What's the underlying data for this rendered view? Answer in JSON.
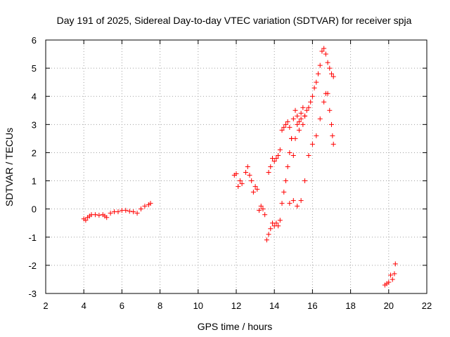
{
  "chart_data": {
    "type": "scatter",
    "title": "Day 191 of 2025, Sidereal Day-to-day VTEC variation (SDTVAR) for receiver spja",
    "xlabel": "GPS time / hours",
    "ylabel": "SDTVAR / TECUs",
    "xlim": [
      2,
      22
    ],
    "ylim": [
      -3,
      6
    ],
    "xticks": [
      "2",
      "4",
      "6",
      "8",
      "10",
      "12",
      "14",
      "16",
      "18",
      "20",
      "22"
    ],
    "yticks": [
      "-3",
      "-2",
      "-1",
      "0",
      "1",
      "2",
      "3",
      "4",
      "5",
      "6"
    ],
    "grid": true,
    "marker": "plus",
    "color": "#ff0000",
    "series": [
      {
        "name": "SDTVAR",
        "x": [
          4.0,
          4.1,
          4.2,
          4.3,
          4.4,
          4.6,
          4.8,
          5.0,
          5.1,
          5.2,
          5.4,
          5.6,
          5.8,
          6.0,
          6.2,
          6.4,
          6.6,
          6.8,
          7.0,
          7.2,
          7.4,
          7.5,
          11.9,
          12.0,
          12.1,
          12.2,
          12.3,
          12.5,
          12.6,
          12.7,
          12.8,
          12.9,
          13.0,
          13.1,
          13.2,
          13.3,
          13.4,
          13.5,
          13.6,
          13.7,
          13.8,
          13.9,
          14.0,
          14.1,
          14.2,
          14.3,
          14.4,
          14.5,
          14.6,
          14.7,
          14.8,
          14.9,
          15.0,
          15.1,
          15.2,
          15.3,
          15.4,
          15.5,
          15.6,
          13.7,
          13.8,
          13.9,
          14.0,
          14.1,
          14.2,
          14.3,
          14.4,
          14.5,
          14.6,
          14.7,
          14.8,
          14.9,
          15.0,
          15.1,
          15.2,
          15.3,
          15.4,
          15.5,
          15.6,
          15.7,
          15.8,
          15.9,
          16.0,
          16.1,
          16.2,
          16.3,
          16.4,
          16.5,
          16.6,
          16.7,
          16.8,
          16.9,
          17.0,
          17.1,
          14.8,
          15.0,
          15.2,
          15.4,
          15.6,
          15.8,
          16.0,
          16.2,
          16.4,
          16.6,
          16.7,
          16.8,
          16.9,
          17.0,
          17.05,
          17.1,
          19.8,
          19.9,
          20.0,
          20.1,
          20.2,
          20.3,
          20.35
        ],
        "y": [
          -0.35,
          -0.4,
          -0.3,
          -0.25,
          -0.2,
          -0.2,
          -0.22,
          -0.2,
          -0.25,
          -0.3,
          -0.15,
          -0.1,
          -0.1,
          -0.05,
          -0.05,
          -0.08,
          -0.1,
          -0.15,
          0.0,
          0.1,
          0.15,
          0.2,
          1.2,
          1.25,
          0.8,
          1.0,
          0.9,
          1.3,
          1.5,
          1.2,
          1.0,
          0.6,
          0.8,
          0.7,
          -0.05,
          0.1,
          0.0,
          -0.2,
          -1.1,
          -0.9,
          -0.7,
          -0.5,
          -0.6,
          -0.5,
          -0.6,
          -0.4,
          0.2,
          0.6,
          1.0,
          1.5,
          2.0,
          2.5,
          1.9,
          2.5,
          3.0,
          2.8,
          3.2,
          3.0,
          3.3,
          1.3,
          1.5,
          1.8,
          1.7,
          1.8,
          1.9,
          2.1,
          2.8,
          2.9,
          3.0,
          3.1,
          2.9,
          2.5,
          3.2,
          3.5,
          3.3,
          3.1,
          3.4,
          3.6,
          3.3,
          3.5,
          3.6,
          3.8,
          4.0,
          4.3,
          4.5,
          4.8,
          5.1,
          5.6,
          5.7,
          5.5,
          5.2,
          5.0,
          4.8,
          4.7,
          0.2,
          0.3,
          0.1,
          0.3,
          1.0,
          1.9,
          2.3,
          2.6,
          3.2,
          3.8,
          4.1,
          4.1,
          3.5,
          3.0,
          2.6,
          2.3,
          -2.7,
          -2.65,
          -2.6,
          -2.35,
          -2.5,
          -2.3,
          -1.95
        ]
      }
    ]
  }
}
